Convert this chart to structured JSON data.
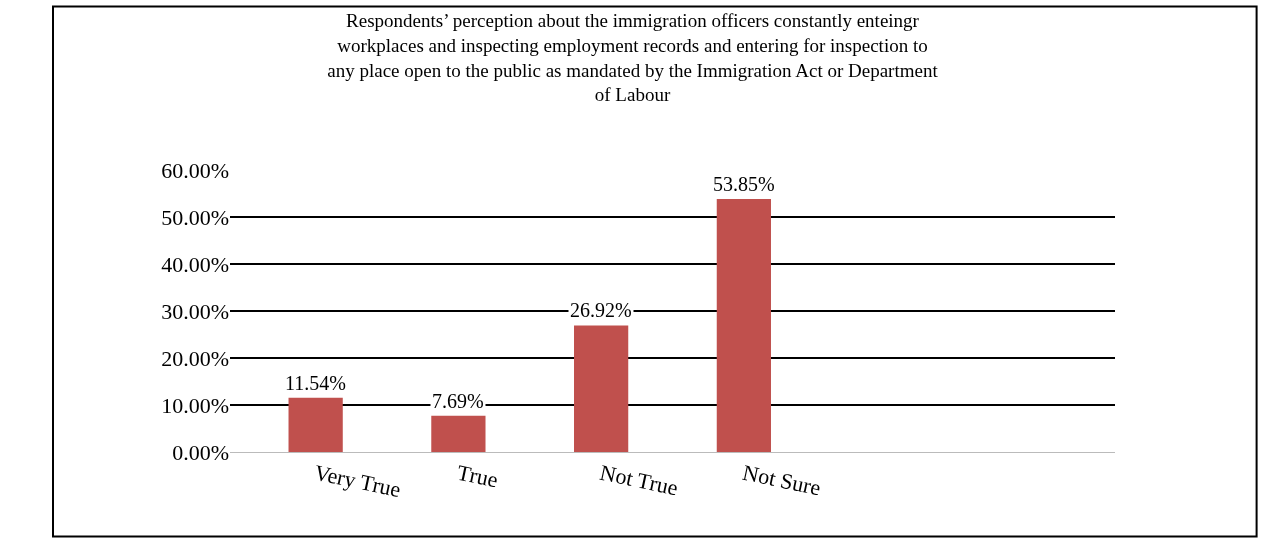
{
  "chart_data": {
    "type": "bar",
    "title": "Respondents’ perception about the immigration officers constantly enteingr workplaces and inspecting employment records and entering for inspection to any place open to the public as mandated by the Immigration Act or Department of Labour",
    "categories": [
      "Very True",
      "True",
      "Not True",
      "Not Sure",
      null,
      null
    ],
    "values": [
      11.54,
      7.69,
      26.92,
      53.85,
      null,
      null
    ],
    "value_labels": [
      "11.54%",
      "7.69%",
      "26.92%",
      "53.85%",
      null,
      null
    ],
    "color": "#c0504d",
    "ylim": [
      0,
      60
    ],
    "yticks": [
      {
        "value": 0,
        "label": "0.00%"
      },
      {
        "value": 10,
        "label": "10.00%"
      },
      {
        "value": 20,
        "label": "20.00%"
      },
      {
        "value": 30,
        "label": "30.00%"
      },
      {
        "value": 40,
        "label": "40.00%"
      },
      {
        "value": 50,
        "label": "50.00%"
      },
      {
        "value": 60,
        "label": "60.00%"
      }
    ],
    "grid": "y"
  }
}
